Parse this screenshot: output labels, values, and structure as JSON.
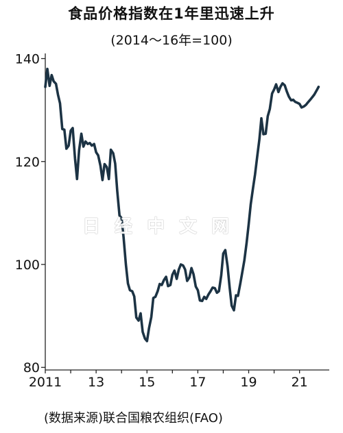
{
  "chart_data": {
    "type": "line",
    "title": "食品价格指数在1年里迅速上升",
    "subtitle": "(2014～16年=100)",
    "source": "(数据来源)联合国粮农组织(FAO)",
    "watermark": "日 经 中 文 网",
    "x_ticks": [
      "2011",
      "13",
      "15",
      "17",
      "19",
      "21"
    ],
    "y_ticks": [
      80,
      100,
      120,
      140
    ],
    "xlim": [
      2011,
      2021.9
    ],
    "ylim": [
      79.5,
      141
    ],
    "line_color": "#1c3344",
    "grid": false,
    "series": [
      {
        "x": [
          2011.0,
          2011.08,
          2011.17,
          2011.25,
          2011.33,
          2011.42,
          2011.5,
          2011.58,
          2011.67,
          2011.75,
          2011.83,
          2011.92,
          2012.0,
          2012.08,
          2012.17,
          2012.25,
          2012.33,
          2012.42,
          2012.5,
          2012.58,
          2012.67,
          2012.75,
          2012.83,
          2012.92,
          2013.0,
          2013.08,
          2013.17,
          2013.25,
          2013.33,
          2013.42,
          2013.5,
          2013.58,
          2013.67,
          2013.75,
          2013.83,
          2013.92,
          2014.0,
          2014.08,
          2014.17,
          2014.25,
          2014.33,
          2014.42,
          2014.5,
          2014.58,
          2014.67,
          2014.75,
          2014.83,
          2014.92,
          2015.0,
          2015.08,
          2015.17,
          2015.25,
          2015.33,
          2015.42,
          2015.5,
          2015.58,
          2015.67,
          2015.75,
          2015.83,
          2015.92,
          2016.0,
          2016.08,
          2016.17,
          2016.25,
          2016.33,
          2016.42,
          2016.5,
          2016.58,
          2016.67,
          2016.75,
          2016.83,
          2016.92,
          2017.0,
          2017.08,
          2017.17,
          2017.25,
          2017.33,
          2017.42,
          2017.5,
          2017.58,
          2017.67,
          2017.75,
          2017.83,
          2017.92,
          2018.0,
          2018.08,
          2018.17,
          2018.25,
          2018.33,
          2018.42,
          2018.5,
          2018.58,
          2018.67,
          2018.75,
          2018.83,
          2018.92,
          2019.0,
          2019.08,
          2019.17,
          2019.25,
          2019.33,
          2019.42,
          2019.5,
          2019.58,
          2019.67,
          2019.75,
          2019.83,
          2019.92,
          2020.0,
          2020.08,
          2020.17,
          2020.25,
          2020.33,
          2020.42,
          2020.5,
          2020.58,
          2020.67,
          2020.75,
          2020.83,
          2020.92,
          2021.0,
          2021.08,
          2021.17,
          2021.25,
          2021.33,
          2021.42,
          2021.5,
          2021.58,
          2021.67,
          2021.75
        ],
        "y": [
          134.5,
          138.0,
          134.7,
          136.8,
          135.6,
          135.1,
          133.0,
          131.3,
          126.3,
          126.2,
          122.5,
          123.1,
          126.0,
          126.5,
          120.5,
          116.6,
          122.2,
          125.4,
          122.9,
          123.9,
          123.4,
          123.6,
          123.1,
          123.4,
          121.8,
          121.2,
          119.2,
          116.4,
          119.5,
          118.9,
          116.6,
          122.3,
          121.6,
          119.6,
          114.3,
          109.5,
          109.0,
          105.2,
          100.0,
          96.3,
          95.0,
          94.8,
          93.8,
          89.7,
          89.1,
          90.5,
          86.9,
          85.6,
          85.1,
          87.6,
          89.8,
          93.5,
          93.7,
          94.8,
          96.2,
          96.0,
          97.0,
          97.6,
          95.8,
          96.0,
          98.0,
          98.8,
          97.2,
          99.0,
          100.0,
          99.8,
          99.0,
          96.8,
          97.5,
          99.3,
          98.1,
          95.7,
          95.0,
          93.0,
          92.9,
          93.7,
          93.3,
          94.2,
          94.8,
          95.5,
          95.4,
          94.5,
          94.8,
          97.9,
          102.1,
          102.8,
          99.6,
          95.6,
          92.0,
          91.1,
          94.0,
          93.9,
          96.3,
          98.5,
          100.8,
          104.2,
          107.8,
          111.7,
          114.8,
          117.5,
          120.7,
          124.3,
          128.4,
          125.3,
          125.4,
          128.8,
          130.2,
          133.2,
          134.0,
          135.0,
          133.5,
          134.5,
          135.2,
          134.8,
          133.6,
          132.6,
          131.9,
          132.0,
          131.6,
          131.4,
          131.2,
          130.5,
          130.7,
          131.0,
          131.5,
          132.0,
          132.5,
          133.0,
          133.8,
          134.5
        ]
      }
    ]
  }
}
